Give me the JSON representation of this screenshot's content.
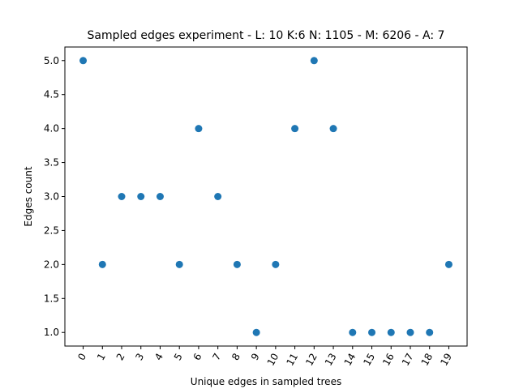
{
  "chart_data": {
    "type": "scatter",
    "title": "Sampled edges experiment - L: 10 K:6 N: 1105 - M: 6206 - A: 7",
    "xlabel": "Unique edges in sampled trees",
    "ylabel": "Edges count",
    "x": [
      0,
      1,
      2,
      3,
      4,
      5,
      6,
      7,
      8,
      9,
      10,
      11,
      12,
      13,
      14,
      15,
      16,
      17,
      18,
      19
    ],
    "x_tick_labels": [
      "0",
      "1",
      "2",
      "3",
      "4",
      "5",
      "6",
      "7",
      "8",
      "9",
      "10",
      "11",
      "12",
      "13",
      "14",
      "15",
      "16",
      "17",
      "18",
      "19"
    ],
    "y": [
      5,
      2,
      3,
      3,
      3,
      2,
      4,
      3,
      2,
      1,
      2,
      4,
      5,
      4,
      1,
      1,
      1,
      1,
      1,
      2
    ],
    "y_ticks": [
      1.0,
      1.5,
      2.0,
      2.5,
      3.0,
      3.5,
      4.0,
      4.5,
      5.0
    ],
    "y_tick_labels": [
      "1.0",
      "1.5",
      "2.0",
      "2.5",
      "3.0",
      "3.5",
      "4.0",
      "4.5",
      "5.0"
    ],
    "xlim": [
      -0.95,
      19.95
    ],
    "ylim": [
      0.8,
      5.2
    ],
    "x_tick_rotation": 60,
    "grid": false,
    "legend": "none",
    "marker_color": "#1f77b4"
  }
}
